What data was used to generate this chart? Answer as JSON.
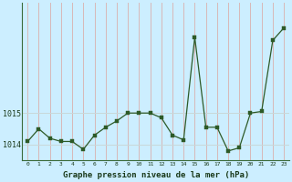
{
  "hours": [
    0,
    1,
    2,
    3,
    4,
    5,
    6,
    7,
    8,
    9,
    10,
    11,
    12,
    13,
    14,
    15,
    16,
    17,
    18,
    19,
    20,
    21,
    22,
    23
  ],
  "pressure": [
    1014.1,
    1014.5,
    1014.2,
    1014.1,
    1014.1,
    1013.85,
    1014.3,
    1014.55,
    1014.75,
    1015.0,
    1015.0,
    1015.0,
    1014.85,
    1014.3,
    1014.15,
    1017.4,
    1014.55,
    1014.55,
    1013.8,
    1013.9,
    1015.0,
    1015.05,
    1017.3,
    1017.7
  ],
  "line_color": "#2d5a27",
  "marker_color": "#2d5a27",
  "bg_color": "#cceeff",
  "grid_color_v": "#d8b8b8",
  "grid_color_h": "#c8d8d8",
  "axis_label_color": "#1a3a1a",
  "xlabel": "Graphe pression niveau de la mer (hPa)",
  "ylim_min": 1013.5,
  "ylim_max": 1018.5,
  "ytick_values": [
    1014,
    1015
  ],
  "figwidth": 3.2,
  "figheight": 2.0,
  "dpi": 100
}
